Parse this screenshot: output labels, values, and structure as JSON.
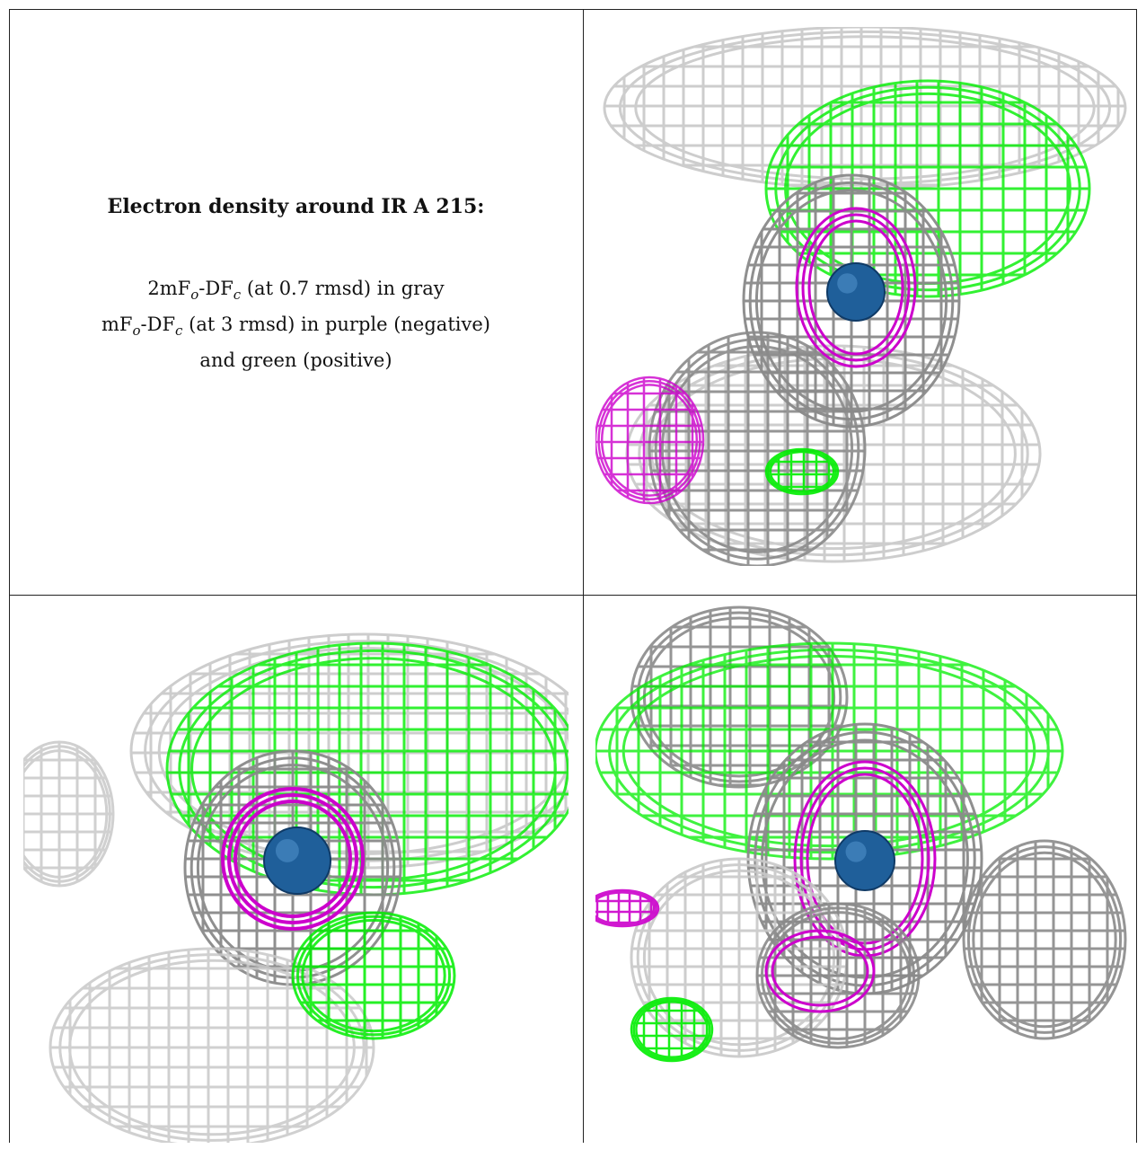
{
  "caption": {
    "title": "Electron density around IR A 215:",
    "lines": [
      {
        "pre": "2mF",
        "sub1": "o",
        "mid": "-DF",
        "sub2": "c",
        "post": " (at 0.7 rmsd) in gray"
      },
      {
        "pre": "mF",
        "sub1": "o",
        "mid": "-DF",
        "sub2": "c",
        "post": " (at 3 rmsd) in purple (negative)"
      },
      {
        "pre": "",
        "sub1": "",
        "mid": "",
        "sub2": "",
        "post": "and green (positive)"
      }
    ]
  },
  "colors": {
    "mesh_gray": "#8a8a8a",
    "mesh_light": "#c8c8c8",
    "negative_purple": "#cc00cc",
    "positive_green": "#00ee00",
    "atom_blue": "#1f5f9a"
  },
  "panels": [
    {
      "name": "view-1",
      "atom": "IR A 215"
    },
    {
      "name": "view-2",
      "atom": "IR A 215"
    },
    {
      "name": "view-3",
      "atom": "IR A 215"
    }
  ]
}
